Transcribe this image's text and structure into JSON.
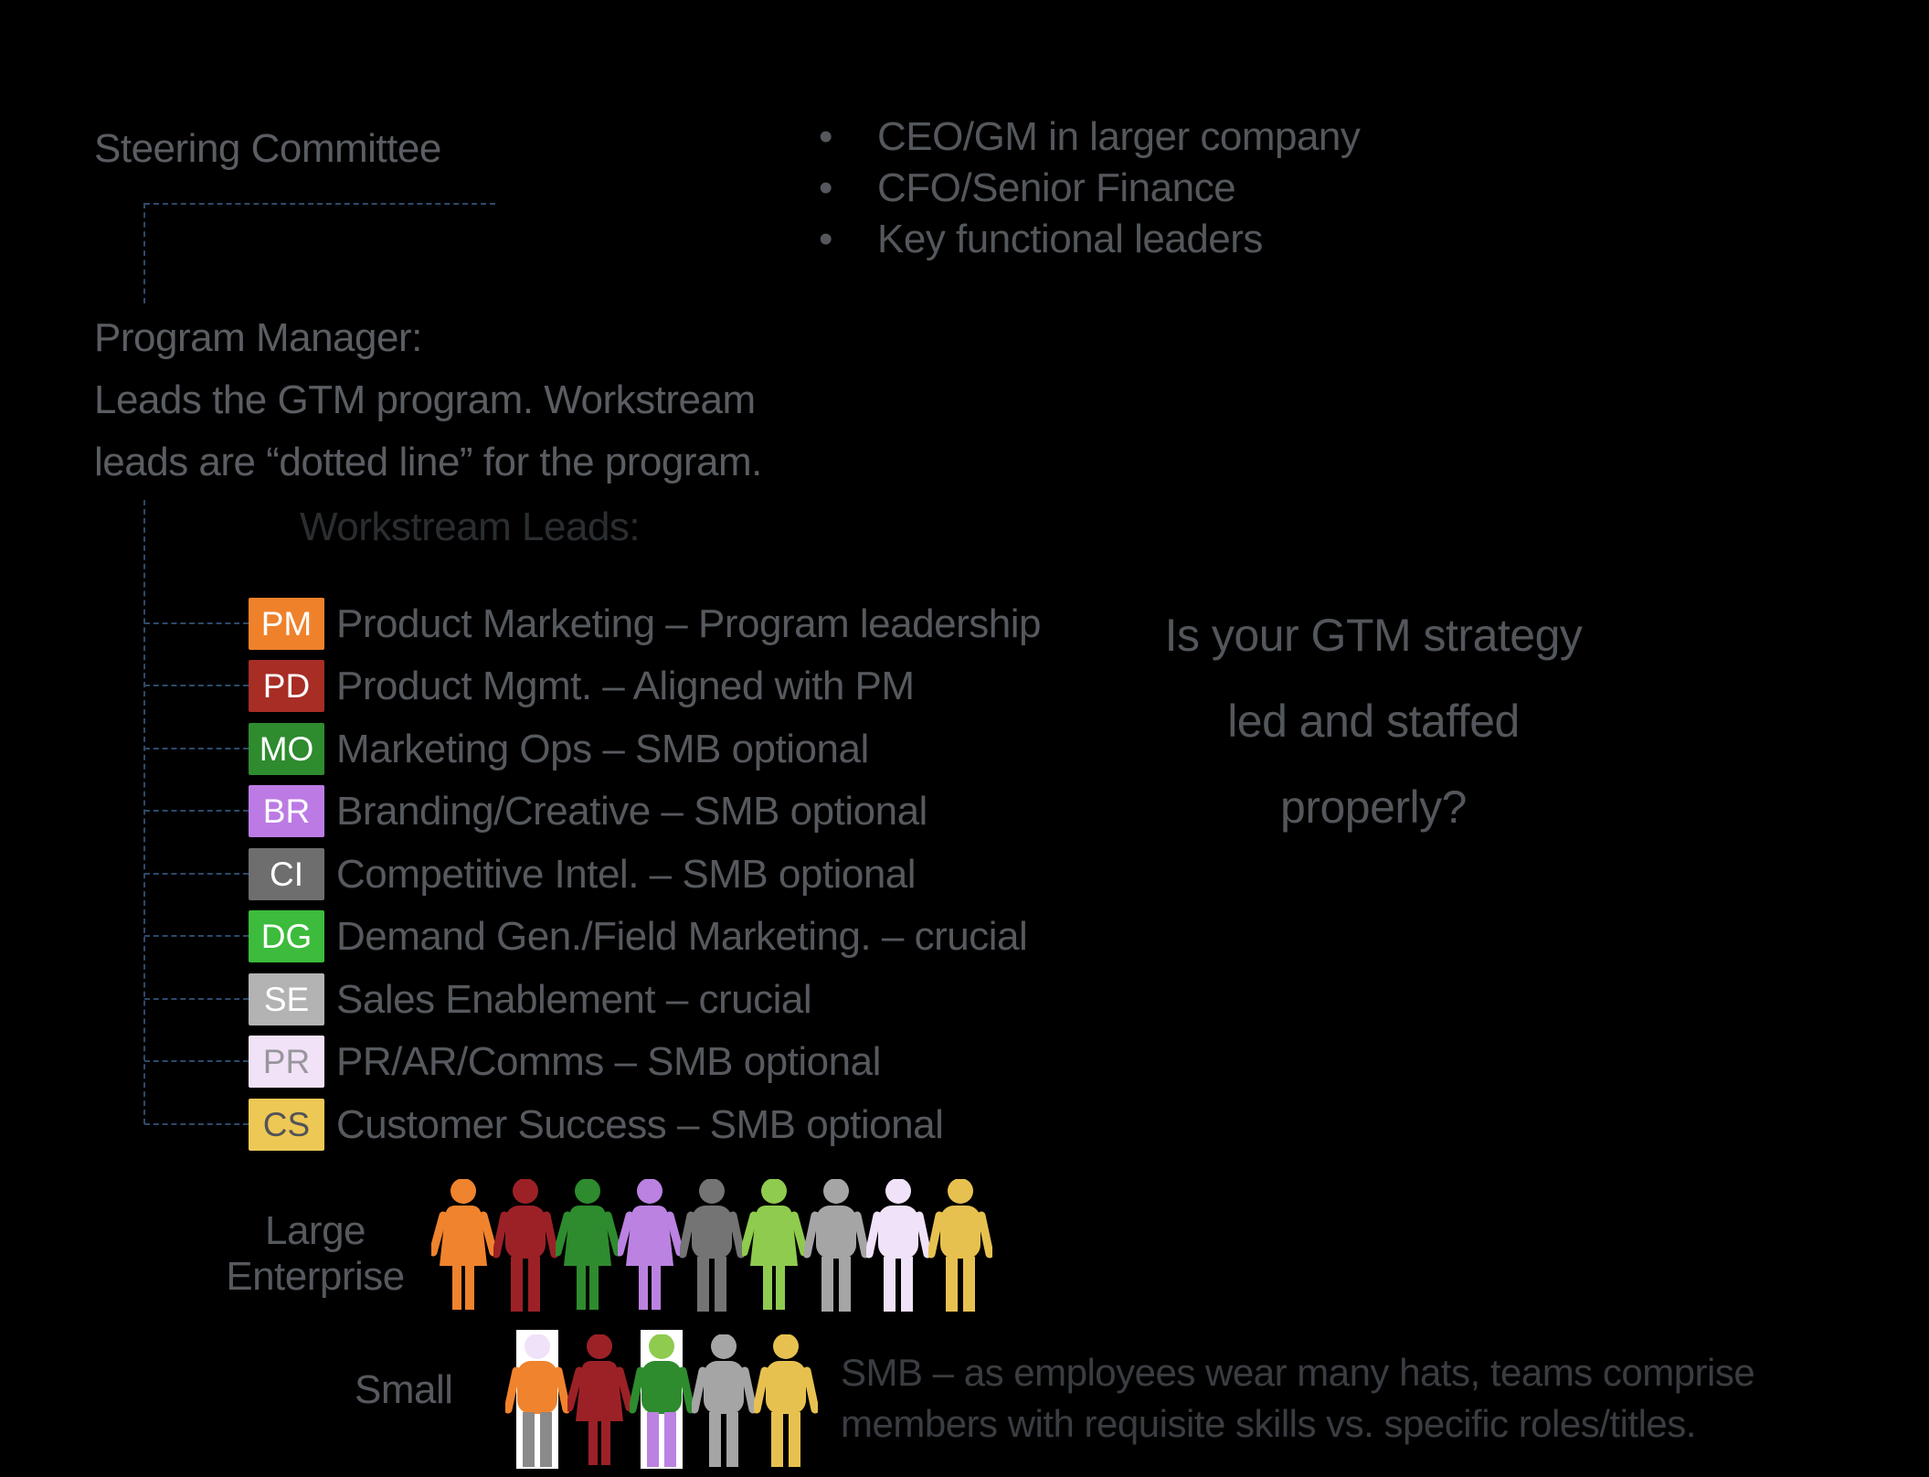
{
  "colors": {
    "background": "#000000",
    "connector": "#2C4A6A",
    "highlight_box": "#FFFFFF",
    "body_text": "#56595E",
    "heading_dark": "#2B2E31",
    "note_text": "#3A3D41"
  },
  "steering": {
    "label": "Steering Committee",
    "bullets": [
      "CEO/GM in larger company",
      "CFO/Senior Finance",
      "Key functional leaders"
    ]
  },
  "program_manager": {
    "line1": "Program Manager:",
    "line2": "Leads the GTM program. Workstream",
    "line3": "leads are “dotted line” for the program."
  },
  "workstream": {
    "heading": "Workstream Leads:",
    "items": [
      {
        "code": "PM",
        "label": "Product Marketing – Program leadership",
        "bg": "#F0812B",
        "fg": "#FFFFFF"
      },
      {
        "code": "PD",
        "label": "Product Mgmt. – Aligned with PM",
        "bg": "#A72D25",
        "fg": "#FFFFFF"
      },
      {
        "code": "MO",
        "label": "Marketing Ops – SMB optional",
        "bg": "#2E8B2E",
        "fg": "#FFFFFF"
      },
      {
        "code": "BR",
        "label": "Branding/Creative – SMB optional",
        "bg": "#BC7BE4",
        "fg": "#FFFFFF"
      },
      {
        "code": "CI",
        "label": "Competitive Intel. – SMB optional",
        "bg": "#6E6E6E",
        "fg": "#FFFFFF"
      },
      {
        "code": "DG",
        "label": "Demand Gen./Field Marketing. – crucial",
        "bg": "#3CBB3C",
        "fg": "#FFFFFF"
      },
      {
        "code": "SE",
        "label": "Sales Enablement – crucial",
        "bg": "#B3B3B3",
        "fg": "#FFFFFF"
      },
      {
        "code": "PR",
        "label": "PR/AR/Comms – SMB optional",
        "bg": "#F2E2F8",
        "fg": "#97979B"
      },
      {
        "code": "CS",
        "label": "Customer Success – SMB optional",
        "bg": "#EEC854",
        "fg": "#515459"
      }
    ]
  },
  "question": {
    "line1": "Is your GTM strategy",
    "line2": "led and staffed",
    "line3": "properly?"
  },
  "large_enterprise": {
    "label_line1": "Large",
    "label_line2": "Enterprise",
    "figures": [
      {
        "type": "female",
        "color": "#F0832D"
      },
      {
        "type": "male",
        "color": "#9C2127"
      },
      {
        "type": "female",
        "color": "#2E8B2E"
      },
      {
        "type": "female",
        "color": "#BB82E2"
      },
      {
        "type": "male",
        "color": "#747474"
      },
      {
        "type": "female",
        "color": "#8FCB4F"
      },
      {
        "type": "male",
        "color": "#A5A5A5"
      },
      {
        "type": "male",
        "color": "#F0E2F8"
      },
      {
        "type": "male",
        "color": "#E7C150"
      }
    ]
  },
  "small_business": {
    "label": "Small",
    "figures": [
      {
        "type": "male",
        "head": "#F0E2F8",
        "torso": "#F0832D",
        "legs": "#8A8A8A",
        "boxed": true
      },
      {
        "type": "female",
        "color": "#9C2127",
        "boxed": false
      },
      {
        "type": "male",
        "head": "#8FCB4F",
        "torso": "#2E8B2E",
        "legs": "#BB82E2",
        "boxed": true
      },
      {
        "type": "male",
        "color": "#A5A5A5",
        "boxed": false
      },
      {
        "type": "male",
        "color": "#E7C150",
        "boxed": false
      }
    ]
  },
  "smb_note": {
    "line1": "SMB – as employees wear many hats, teams comprise",
    "line2": "members with requisite skills vs. specific roles/titles."
  }
}
